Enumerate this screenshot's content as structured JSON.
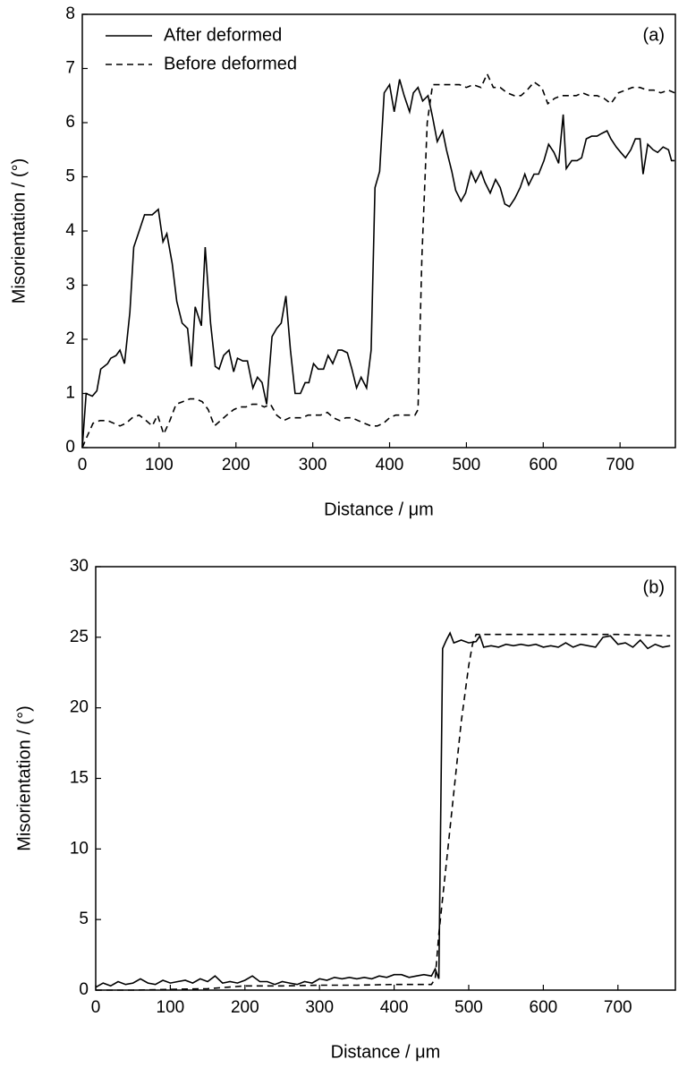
{
  "chart_data": [
    {
      "type": "line",
      "annotation": "(a)",
      "xlabel": "Distance / μm",
      "ylabel": "Misorientation / (°)",
      "xlim": [
        0,
        772
      ],
      "ylim": [
        0,
        8
      ],
      "xticks": [
        0,
        100,
        200,
        300,
        400,
        500,
        600,
        700
      ],
      "yticks": [
        0,
        1,
        2,
        3,
        4,
        5,
        6,
        7,
        8
      ],
      "legend": "upper left",
      "color": "#000000",
      "series": [
        {
          "name": "After deformed",
          "style": "solid",
          "x": [
            0,
            5,
            13,
            19,
            24,
            33,
            37,
            44,
            49,
            55,
            62,
            67,
            74,
            81,
            91,
            99,
            105,
            110,
            117,
            123,
            130,
            137,
            142,
            147,
            155,
            160,
            167,
            173,
            178,
            184,
            191,
            197,
            202,
            209,
            215,
            222,
            228,
            234,
            240,
            247,
            253,
            259,
            265,
            271,
            277,
            284,
            290,
            295,
            301,
            307,
            314,
            320,
            326,
            333,
            338,
            345,
            351,
            357,
            363,
            370,
            376,
            381,
            387,
            393,
            400,
            406,
            413,
            419,
            426,
            431,
            437,
            443,
            450,
            456,
            462,
            469,
            474,
            481,
            486,
            493,
            499,
            506,
            512,
            519,
            524,
            531,
            538,
            544,
            550,
            556,
            563,
            570,
            576,
            581,
            588,
            594,
            601,
            607,
            614,
            620,
            626,
            630,
            637,
            644,
            650,
            656,
            663,
            670,
            676,
            683,
            688,
            695,
            701,
            707,
            714,
            720,
            726,
            730,
            736,
            743,
            749,
            756,
            763,
            767,
            771
          ],
          "values": [
            0,
            1.0,
            0.95,
            1.05,
            1.45,
            1.55,
            1.65,
            1.7,
            1.8,
            1.55,
            2.5,
            3.7,
            4.0,
            4.3,
            4.3,
            4.4,
            3.8,
            3.95,
            3.4,
            2.7,
            2.3,
            2.2,
            1.5,
            2.6,
            2.25,
            3.7,
            2.3,
            1.5,
            1.45,
            1.7,
            1.8,
            1.4,
            1.65,
            1.6,
            1.6,
            1.1,
            1.3,
            1.2,
            0.8,
            2.05,
            2.2,
            2.3,
            2.8,
            1.8,
            1.0,
            1.0,
            1.2,
            1.2,
            1.55,
            1.45,
            1.45,
            1.7,
            1.55,
            1.8,
            1.8,
            1.75,
            1.45,
            1.1,
            1.3,
            1.1,
            1.8,
            4.8,
            5.1,
            6.55,
            6.7,
            6.2,
            6.8,
            6.5,
            6.2,
            6.55,
            6.65,
            6.4,
            6.5,
            6.1,
            5.65,
            5.85,
            5.5,
            5.1,
            4.75,
            4.55,
            4.7,
            5.1,
            4.9,
            5.1,
            4.9,
            4.7,
            4.95,
            4.8,
            4.5,
            4.45,
            4.6,
            4.8,
            5.05,
            4.85,
            5.05,
            5.05,
            5.3,
            5.6,
            5.45,
            5.25,
            6.15,
            5.15,
            5.3,
            5.3,
            5.35,
            5.7,
            5.75,
            5.75,
            5.8,
            5.85,
            5.7,
            5.55,
            5.45,
            5.35,
            5.5,
            5.7,
            5.7,
            5.05,
            5.6,
            5.5,
            5.45,
            5.55,
            5.5,
            5.3,
            5.3
          ]
        },
        {
          "name": "Before deformed",
          "style": "dashed",
          "x": [
            0,
            6,
            14,
            23,
            33,
            41,
            49,
            57,
            65,
            74,
            83,
            91,
            98,
            106,
            114,
            122,
            131,
            140,
            148,
            156,
            164,
            172,
            180,
            188,
            197,
            205,
            213,
            221,
            229,
            237,
            245,
            253,
            262,
            270,
            278,
            286,
            294,
            302,
            310,
            319,
            327,
            335,
            343,
            351,
            359,
            367,
            376,
            384,
            392,
            400,
            408,
            416,
            426,
            433,
            437,
            442,
            449,
            456,
            463,
            472,
            481,
            491,
            500,
            509,
            519,
            527,
            535,
            544,
            553,
            562,
            571,
            579,
            588,
            598,
            606,
            615,
            624,
            634,
            643,
            651,
            660,
            670,
            679,
            688,
            698,
            707,
            716,
            726,
            735,
            744,
            753,
            763,
            771
          ],
          "values": [
            0,
            0.2,
            0.45,
            0.5,
            0.5,
            0.45,
            0.4,
            0.45,
            0.55,
            0.6,
            0.5,
            0.4,
            0.6,
            0.25,
            0.5,
            0.8,
            0.85,
            0.9,
            0.9,
            0.85,
            0.7,
            0.4,
            0.5,
            0.6,
            0.7,
            0.75,
            0.75,
            0.8,
            0.8,
            0.75,
            0.8,
            0.6,
            0.5,
            0.55,
            0.55,
            0.55,
            0.6,
            0.6,
            0.6,
            0.65,
            0.55,
            0.5,
            0.55,
            0.55,
            0.5,
            0.45,
            0.4,
            0.4,
            0.45,
            0.55,
            0.6,
            0.6,
            0.6,
            0.6,
            0.7,
            3.5,
            6.0,
            6.7,
            6.7,
            6.7,
            6.7,
            6.7,
            6.65,
            6.7,
            6.65,
            6.9,
            6.65,
            6.65,
            6.55,
            6.5,
            6.5,
            6.6,
            6.75,
            6.65,
            6.35,
            6.45,
            6.5,
            6.5,
            6.5,
            6.55,
            6.5,
            6.5,
            6.45,
            6.35,
            6.55,
            6.6,
            6.65,
            6.65,
            6.6,
            6.6,
            6.55,
            6.6,
            6.55
          ]
        }
      ]
    },
    {
      "type": "line",
      "annotation": "(b)",
      "xlabel": "Distance / μm",
      "ylabel": "Misorientation / (°)",
      "xlim": [
        0,
        777
      ],
      "ylim": [
        0,
        30
      ],
      "xticks": [
        0,
        100,
        200,
        300,
        400,
        500,
        600,
        700
      ],
      "yticks": [
        0,
        5,
        10,
        15,
        20,
        25,
        30
      ],
      "color": "#000000",
      "series": [
        {
          "style": "solid",
          "x": [
            0,
            10,
            20,
            30,
            40,
            50,
            60,
            70,
            80,
            90,
            100,
            110,
            120,
            130,
            140,
            150,
            160,
            170,
            180,
            190,
            200,
            210,
            220,
            230,
            240,
            250,
            260,
            270,
            280,
            290,
            300,
            310,
            320,
            330,
            340,
            350,
            360,
            370,
            380,
            390,
            400,
            410,
            420,
            430,
            440,
            450,
            455,
            460,
            465,
            470,
            475,
            480,
            490,
            500,
            510,
            515,
            520,
            530,
            540,
            550,
            560,
            570,
            580,
            590,
            600,
            610,
            620,
            630,
            640,
            650,
            660,
            670,
            680,
            690,
            700,
            710,
            720,
            730,
            740,
            750,
            760,
            770
          ],
          "values": [
            0.2,
            0.5,
            0.3,
            0.6,
            0.4,
            0.5,
            0.8,
            0.5,
            0.4,
            0.7,
            0.5,
            0.6,
            0.7,
            0.5,
            0.8,
            0.6,
            1.0,
            0.5,
            0.6,
            0.5,
            0.7,
            1.0,
            0.6,
            0.6,
            0.4,
            0.6,
            0.5,
            0.4,
            0.6,
            0.5,
            0.8,
            0.7,
            0.9,
            0.8,
            0.9,
            0.8,
            0.9,
            0.8,
            1.0,
            0.9,
            1.1,
            1.1,
            0.9,
            1.0,
            1.1,
            1.0,
            1.5,
            0.8,
            24.2,
            24.8,
            25.3,
            24.6,
            24.8,
            24.6,
            24.7,
            25.1,
            24.3,
            24.4,
            24.3,
            24.5,
            24.4,
            24.5,
            24.4,
            24.5,
            24.3,
            24.4,
            24.3,
            24.6,
            24.3,
            24.5,
            24.4,
            24.3,
            25.0,
            25.1,
            24.5,
            24.6,
            24.3,
            24.8,
            24.2,
            24.5,
            24.3,
            24.4
          ]
        },
        {
          "style": "dashed",
          "x": [
            0,
            50,
            100,
            150,
            200,
            250,
            300,
            350,
            400,
            450,
            455,
            460,
            470,
            480,
            490,
            500,
            505,
            510,
            600,
            700,
            770
          ],
          "values": [
            0,
            0,
            0.05,
            0.1,
            0.3,
            0.3,
            0.35,
            0.35,
            0.4,
            0.4,
            0.8,
            4,
            9,
            14,
            19,
            23,
            24.5,
            25.2,
            25.2,
            25.2,
            25.1
          ]
        }
      ]
    }
  ]
}
